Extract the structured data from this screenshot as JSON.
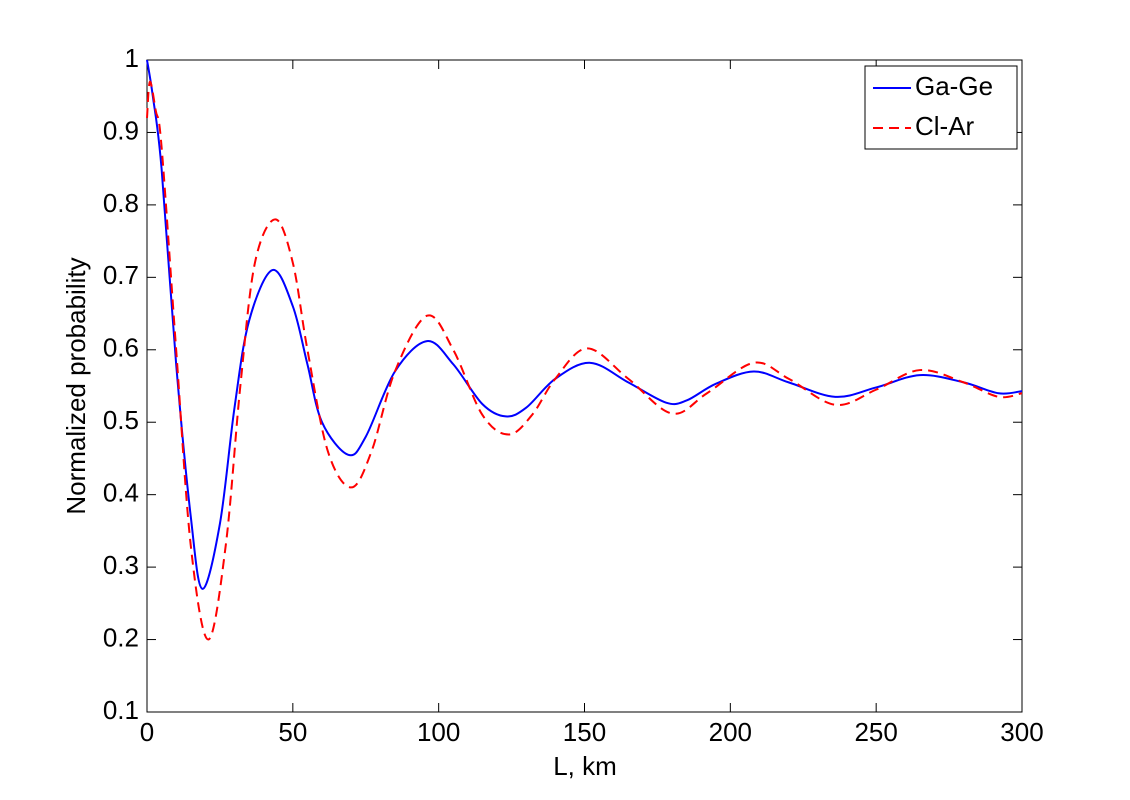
{
  "chart_data": {
    "type": "line",
    "xlabel": "L, km",
    "ylabel": "Normalized probability",
    "xlim": [
      0,
      300
    ],
    "ylim": [
      0.1,
      1
    ],
    "xticks": [
      0,
      50,
      100,
      150,
      200,
      250,
      300
    ],
    "yticks": [
      0.1,
      0.2,
      0.3,
      0.4,
      0.5,
      0.6,
      0.7,
      0.8,
      0.9,
      1
    ],
    "grid": false,
    "legend": "upper right",
    "series": [
      {
        "name": "Ga-Ge",
        "color": "#0000ff",
        "dash": "solid",
        "x": [
          0,
          2,
          5,
          10,
          15,
          19,
          25,
          30,
          35,
          43,
          50,
          55,
          60,
          69,
          75,
          85,
          96,
          105,
          115,
          123,
          130,
          140,
          152,
          165,
          178,
          185,
          195,
          208,
          220,
          236,
          250,
          265,
          280,
          292,
          300
        ],
        "values": [
          1.0,
          0.95,
          0.85,
          0.58,
          0.37,
          0.27,
          0.36,
          0.52,
          0.64,
          0.71,
          0.66,
          0.58,
          0.5,
          0.455,
          0.48,
          0.57,
          0.612,
          0.58,
          0.525,
          0.508,
          0.52,
          0.56,
          0.582,
          0.555,
          0.527,
          0.53,
          0.553,
          0.57,
          0.555,
          0.535,
          0.548,
          0.565,
          0.555,
          0.54,
          0.543
        ]
      },
      {
        "name": "Cl-Ar",
        "color": "#ff0000",
        "dash": "dashed",
        "x": [
          0,
          1,
          3,
          5,
          10,
          15,
          21,
          27,
          32,
          37,
          44,
          50,
          55,
          62,
          70,
          77,
          85,
          96,
          105,
          115,
          124,
          132,
          140,
          151,
          165,
          180,
          192,
          208,
          220,
          236,
          250,
          265,
          280,
          292,
          300
        ],
        "values": [
          0.92,
          0.97,
          0.93,
          0.88,
          0.6,
          0.33,
          0.2,
          0.33,
          0.55,
          0.72,
          0.78,
          0.72,
          0.6,
          0.46,
          0.41,
          0.46,
          0.57,
          0.647,
          0.6,
          0.51,
          0.483,
          0.51,
          0.56,
          0.602,
          0.56,
          0.512,
          0.54,
          0.582,
          0.56,
          0.524,
          0.545,
          0.572,
          0.555,
          0.535,
          0.54
        ]
      }
    ]
  }
}
